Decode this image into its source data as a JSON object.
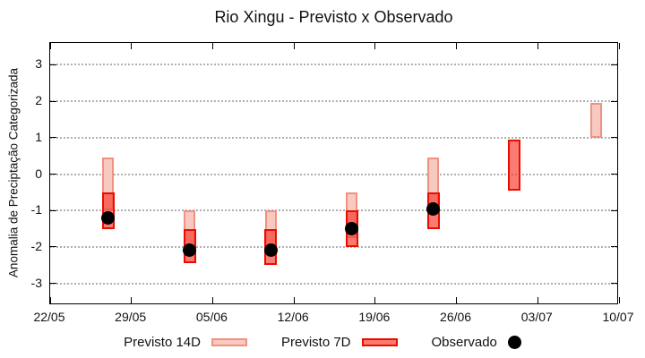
{
  "title": "Rio Xingu - Previsto x Observado",
  "ylabel": "Anomalia de Preciptação Categorizada",
  "legend": {
    "previsto14_label": "Previsto 14D",
    "previsto7_label": "Previsto 7D",
    "observado_label": "Observado"
  },
  "colors": {
    "p14_fill": "#f8c9c1",
    "p14_border": "#f2917f",
    "p7_fill": "rgba(249,60,47,0.68)",
    "p7_fill_flat": "#fb7a6e",
    "p7_border": "#e90d00",
    "observado": "#000000",
    "grid": "#b0b0b0",
    "axis": "#000000"
  },
  "chart_data": {
    "type": "bar",
    "title": "Rio Xingu - Previsto x Observado",
    "xlabel": "",
    "ylabel": "Anomalia de Preciptação Categorizada",
    "ylim": [
      -3.6,
      3.6
    ],
    "yticks": [
      3,
      2,
      1,
      0,
      -1,
      -2,
      -3
    ],
    "grid": "horizontal-dotted",
    "legend_position": "bottom-center",
    "x_range_days": 49,
    "xticks": [
      {
        "day": 0,
        "label": "22/05"
      },
      {
        "day": 7,
        "label": "29/05"
      },
      {
        "day": 14,
        "label": "05/06"
      },
      {
        "day": 21,
        "label": "12/06"
      },
      {
        "day": 28,
        "label": "19/06"
      },
      {
        "day": 35,
        "label": "26/06"
      },
      {
        "day": 42,
        "label": "03/07"
      },
      {
        "day": 49,
        "label": "10/07"
      }
    ],
    "series_names": [
      "Previsto 14D",
      "Previsto 7D",
      "Observado"
    ],
    "points": [
      {
        "date": "27/05",
        "day": 5,
        "previsto14": [
          0.45,
          -1.0
        ],
        "previsto7": [
          -0.5,
          -1.5
        ],
        "observado": -1.2
      },
      {
        "date": "03/06",
        "day": 12,
        "previsto14": [
          -1.0,
          -2.0
        ],
        "previsto7": [
          -1.5,
          -2.45
        ],
        "observado": -2.1
      },
      {
        "date": "10/06",
        "day": 19,
        "previsto14": [
          -1.0,
          -2.0
        ],
        "previsto7": [
          -1.5,
          -2.5
        ],
        "observado": -2.1
      },
      {
        "date": "17/06",
        "day": 26,
        "previsto14": [
          -0.5,
          -1.75
        ],
        "previsto7": [
          -1.0,
          -2.0
        ],
        "observado": -1.5
      },
      {
        "date": "24/06",
        "day": 33,
        "previsto14": [
          0.45,
          -1.0
        ],
        "previsto7": [
          -0.5,
          -1.5
        ],
        "observado": -0.95
      },
      {
        "date": "01/07",
        "day": 40,
        "previsto14": null,
        "previsto7": [
          0.95,
          -0.45
        ],
        "observado": null
      },
      {
        "date": "08/07",
        "day": 47,
        "previsto14": [
          1.95,
          1.0
        ],
        "previsto7": null,
        "observado": null
      }
    ]
  }
}
